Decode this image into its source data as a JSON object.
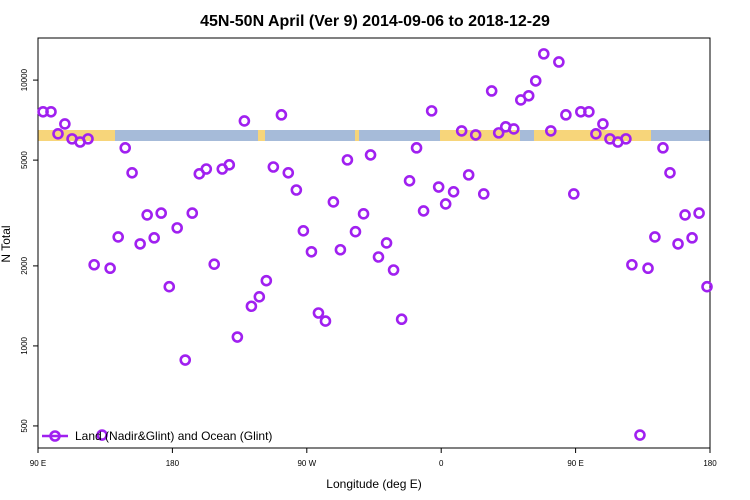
{
  "chart_data": {
    "type": "scatter",
    "title": "45N-50N April (Ver 9)   2014-09-06 to 2018-12-29",
    "xlabel": "Longitude (deg E)",
    "ylabel": "N Total",
    "xlim": [
      90,
      540
    ],
    "xticks": [
      {
        "value": 90,
        "label": "90 E"
      },
      180,
      {
        "value": 270,
        "label": "90 W"
      },
      {
        "value": 360,
        "label": "0"
      },
      {
        "value": 450,
        "label": "90 E"
      },
      {
        "value": 540,
        "label": "180"
      }
    ],
    "ylim": [
      413,
      14400
    ],
    "yticks": [
      500,
      1000,
      2000,
      5000,
      10000
    ],
    "ylog": true,
    "legend": "bottom-left",
    "series": [
      {
        "name": "Land (Nadir&Glint) and Ocean (Glint)",
        "color": "#a020f0",
        "x": [
          93.4,
          98.7,
          103.4,
          108,
          112.8,
          118.2,
          123.5,
          127.6,
          132.9,
          138.3,
          143.7,
          148.4,
          153,
          158.4,
          163.1,
          167.8,
          172.5,
          177.9,
          183.2,
          188.6,
          193.3,
          198,
          202.7,
          208,
          213.4,
          218.1,
          223.5,
          228.2,
          232.9,
          238.2,
          242.9,
          247.6,
          253,
          257.6,
          263,
          267.7,
          273.1,
          277.8,
          282.5,
          287.8,
          292.5,
          297.2,
          302.6,
          308,
          312.7,
          318,
          323.4,
          328.1,
          333.5,
          338.8,
          343.5,
          348.2,
          353.6,
          358.3,
          363,
          368.3,
          373.7,
          378.4,
          383.1,
          388.5,
          393.8,
          398.5,
          403.2,
          408.6,
          413.3,
          418.6,
          423.3,
          428.7,
          433.4,
          438.8,
          443.5,
          448.8,
          453.5,
          458.9,
          463.6,
          468.3,
          473,
          478.3,
          483.7,
          487.7,
          493.1,
          498.5,
          503.1,
          508.5,
          513.2,
          518.6,
          523.3,
          528,
          532.7,
          538
        ],
        "values": [
          7600,
          7600,
          6280,
          6840,
          6010,
          5850,
          6010,
          2020,
          462,
          1960,
          2570,
          5560,
          4480,
          2420,
          3110,
          2550,
          3160,
          1670,
          2780,
          885,
          3160,
          4440,
          4630,
          2030,
          4630,
          4800,
          1080,
          7020,
          1410,
          1530,
          1760,
          4710,
          7400,
          4480,
          3860,
          2710,
          2260,
          1330,
          1240,
          3480,
          2300,
          5010,
          2690,
          3140,
          5230,
          2160,
          2440,
          1930,
          1260,
          4180,
          5560,
          3220,
          7660,
          3960,
          3420,
          3800,
          6440,
          4400,
          6220,
          3730,
          9100,
          6330,
          6670,
          6550,
          8420,
          8730,
          9930,
          12550,
          6440,
          11700,
          7400,
          3730,
          7600,
          7600,
          6280,
          6840,
          6010,
          5850,
          6010,
          2020,
          462,
          1960,
          2570,
          5560,
          4480,
          2420,
          3110,
          2550,
          3160,
          1670
        ]
      }
    ]
  }
}
